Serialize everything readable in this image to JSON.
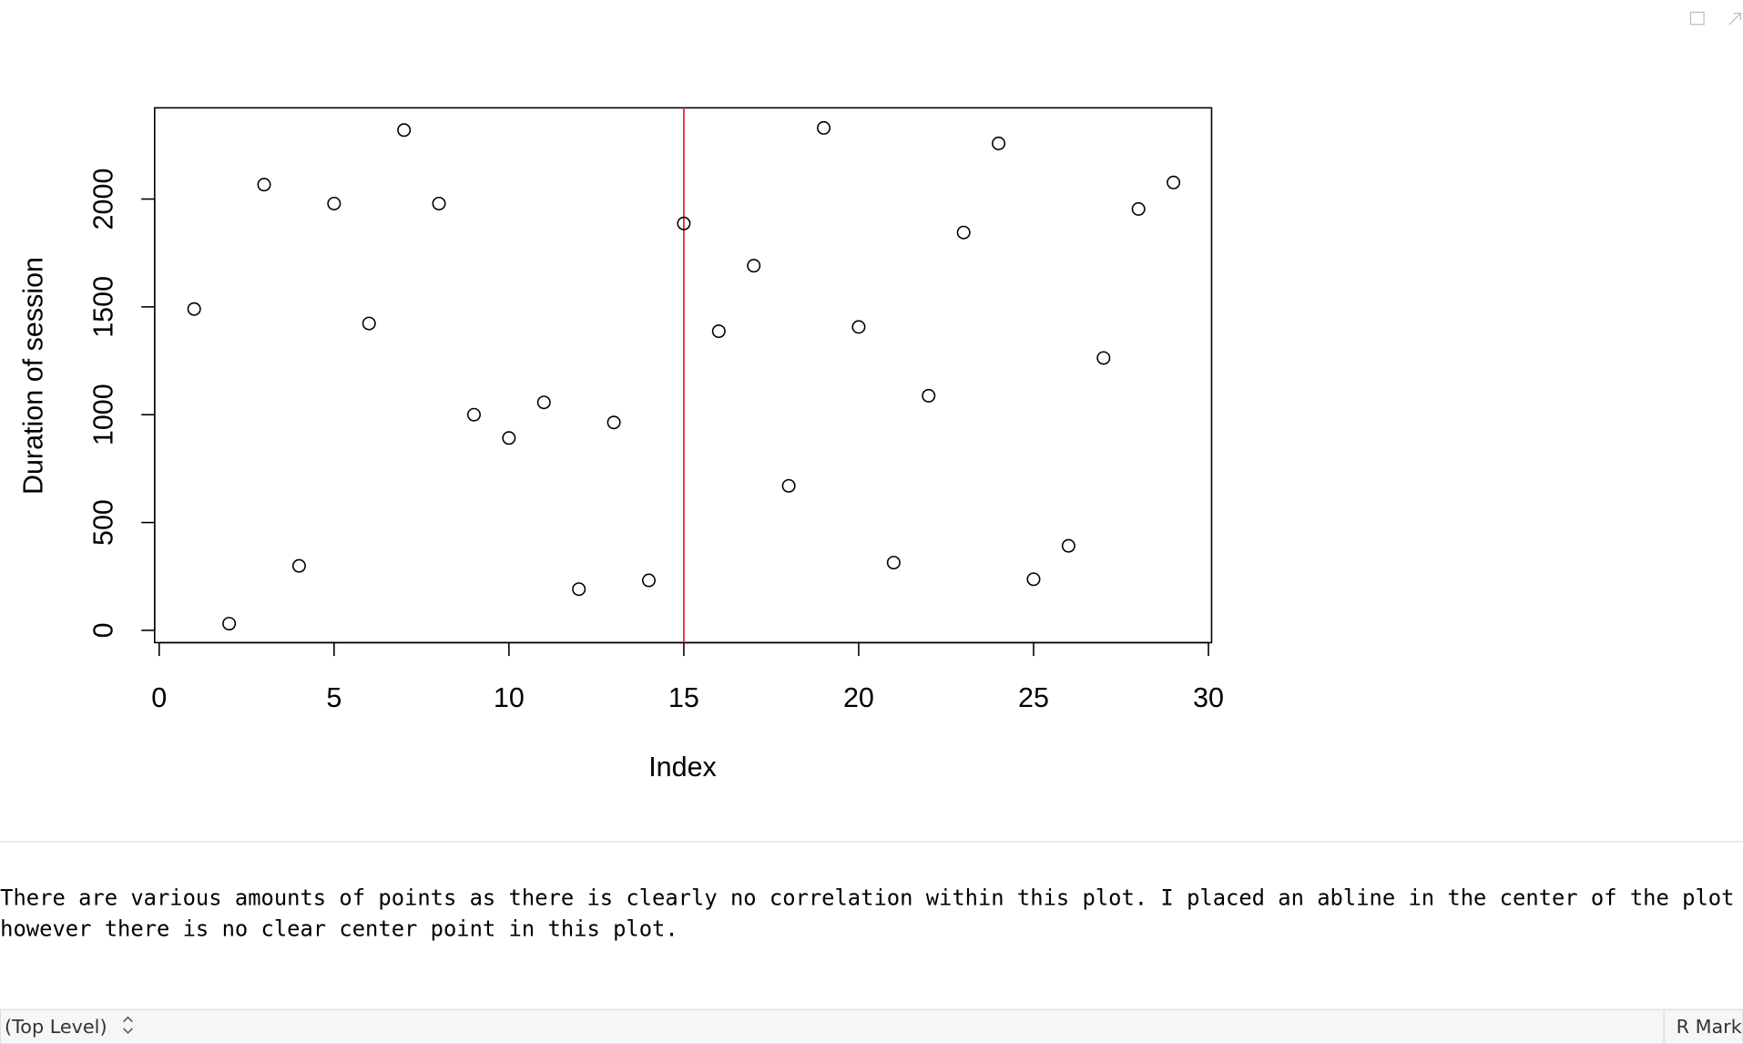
{
  "chart_data": {
    "type": "scatter",
    "x": [
      1,
      2,
      3,
      4,
      5,
      6,
      7,
      8,
      9,
      10,
      11,
      12,
      13,
      14,
      15,
      16,
      17,
      18,
      19,
      20,
      21,
      22,
      23,
      24,
      25,
      26,
      27,
      28,
      29
    ],
    "values": [
      1490,
      31,
      2067,
      299,
      1979,
      1423,
      2320,
      1979,
      1000,
      892,
      1057,
      191,
      964,
      232,
      1887,
      1387,
      1691,
      670,
      2330,
      1407,
      314,
      1088,
      1845,
      2258,
      237,
      392,
      1263,
      1954,
      2077
    ],
    "color": "#000000",
    "xlabel": "Index",
    "ylabel": "Duration of session",
    "xlim": [
      -0.13,
      30.09
    ],
    "ylim": [
      -57,
      2423
    ],
    "xticks": [
      0,
      5,
      10,
      15,
      20,
      25,
      30
    ],
    "yticks": [
      0,
      500,
      1000,
      1500,
      2000
    ],
    "vline": {
      "x": 15,
      "color": "#e0302a"
    }
  },
  "text": {
    "lines": [
      "There are various amounts of points as there is clearly no correlation within this plot. I placed an abline in the center of the plot",
      "however there is no clear center point in this plot."
    ]
  },
  "status_bar": {
    "left": "(Top Level)",
    "right": "R Mark"
  }
}
